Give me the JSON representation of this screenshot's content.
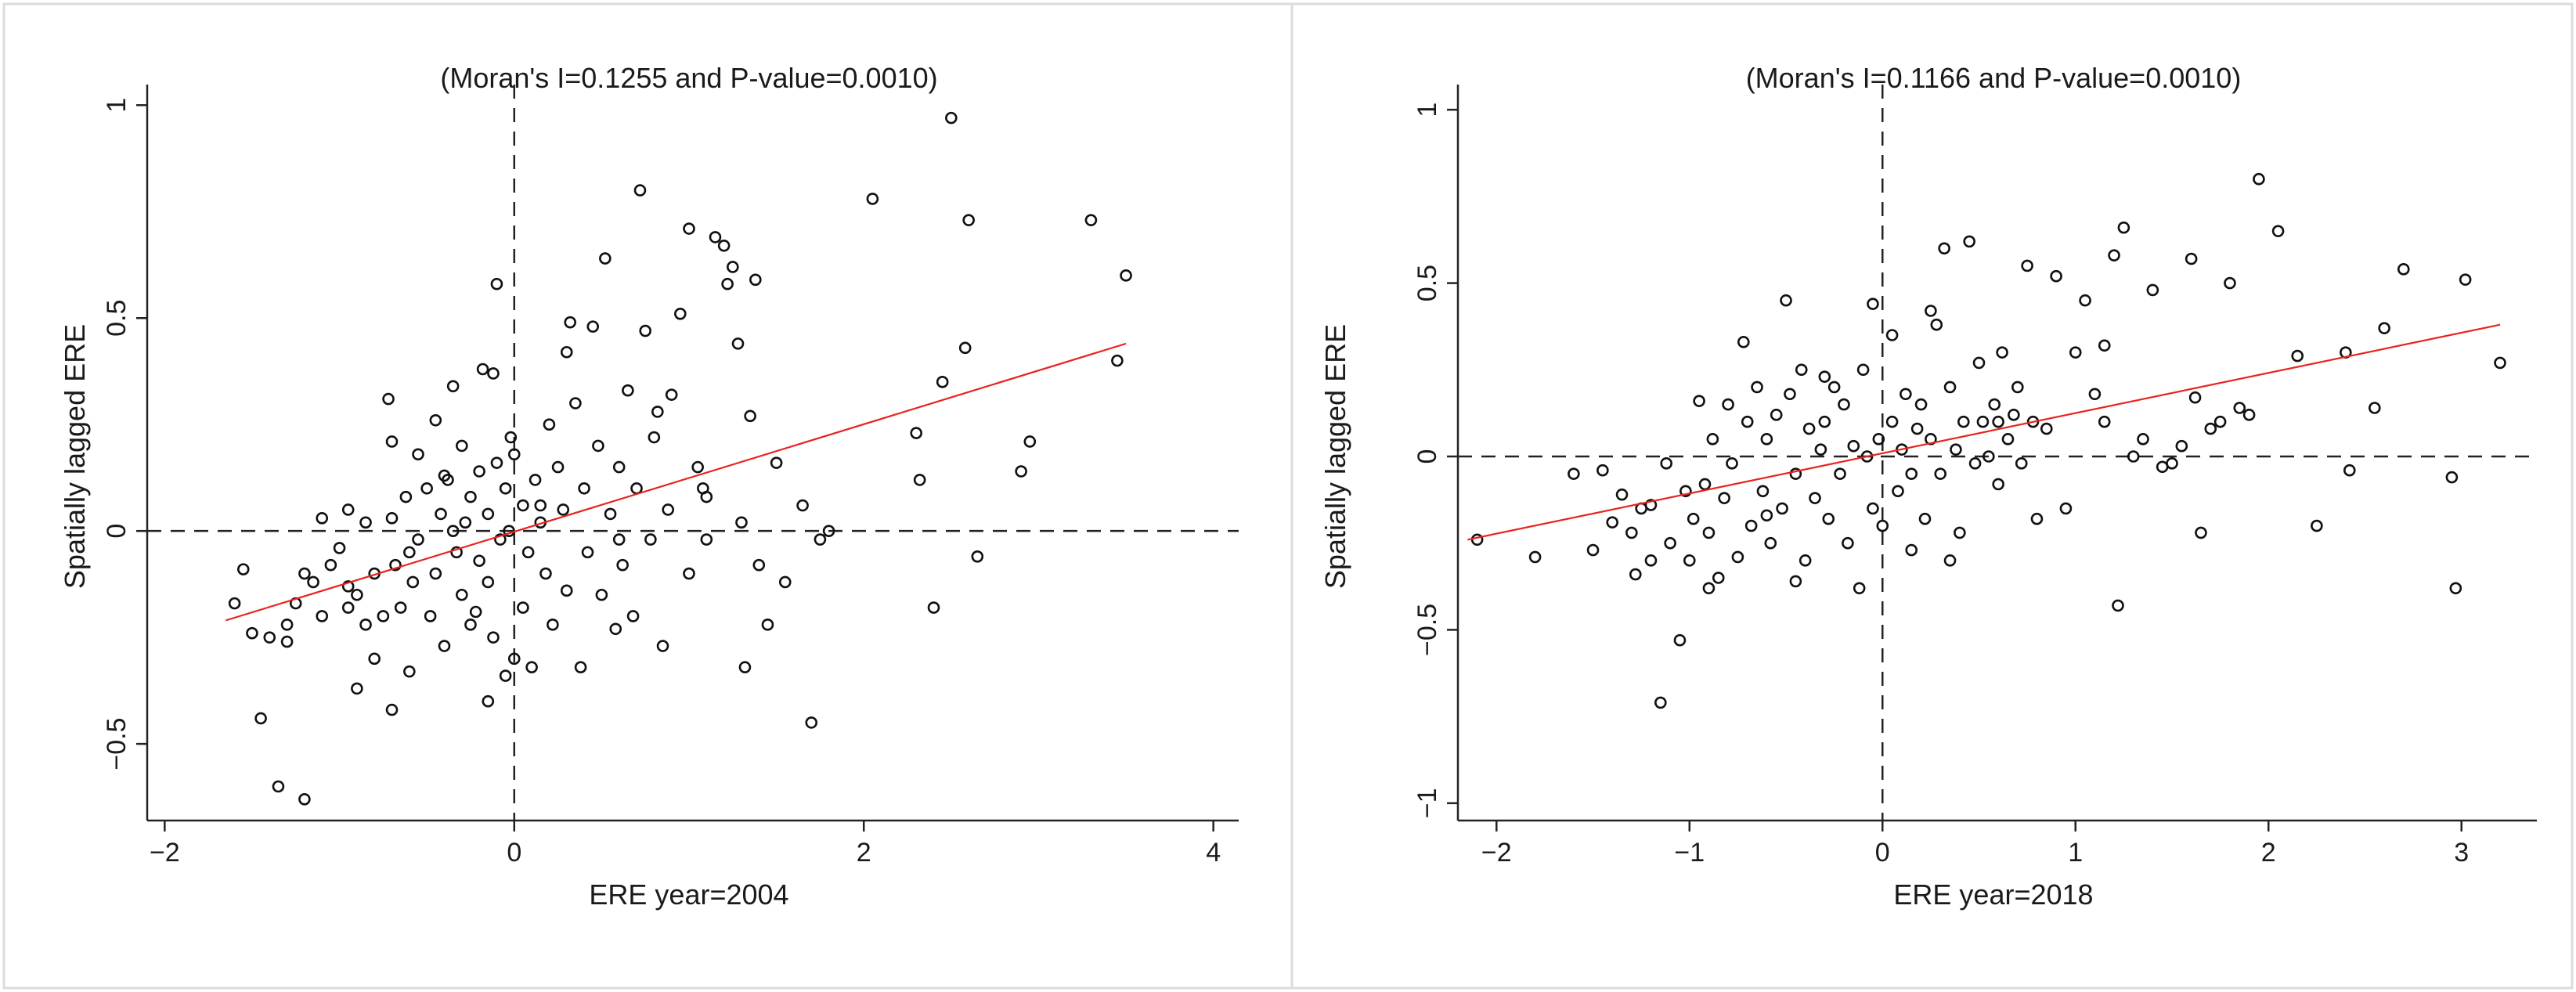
{
  "chart_data": [
    {
      "type": "scatter",
      "title": "(Moran's I=0.1255 and P-value=0.0010)",
      "xlabel": "ERE  year=2004",
      "ylabel": "Spatially lagged ERE",
      "xlim": [
        -2.1,
        4.1
      ],
      "ylim": [
        -0.68,
        1.03
      ],
      "xticks": [
        -2,
        0,
        2,
        4
      ],
      "xtick_labels": [
        "−2",
        "0",
        "2",
        "4"
      ],
      "yticks": [
        -0.5,
        0,
        0.5,
        1
      ],
      "ytick_labels": [
        "−0.5",
        "0",
        "0.5",
        "1"
      ],
      "grid": false,
      "reference_lines": {
        "x": 0,
        "y": 0
      },
      "fit_line": {
        "x": [
          -1.65,
          3.5
        ],
        "y": [
          -0.21,
          0.44
        ],
        "color": "#e8231f"
      },
      "points": [
        [
          -1.6,
          -0.17
        ],
        [
          -1.55,
          -0.09
        ],
        [
          -1.5,
          -0.24
        ],
        [
          -1.45,
          -0.44
        ],
        [
          -1.4,
          -0.25
        ],
        [
          -1.35,
          -0.6
        ],
        [
          -1.3,
          -0.22
        ],
        [
          -1.3,
          -0.26
        ],
        [
          -1.25,
          -0.17
        ],
        [
          -1.2,
          -0.63
        ],
        [
          -1.2,
          -0.1
        ],
        [
          -1.15,
          -0.12
        ],
        [
          -1.1,
          -0.2
        ],
        [
          -1.05,
          -0.08
        ],
        [
          -1.0,
          -0.04
        ],
        [
          -0.95,
          0.05
        ],
        [
          -0.95,
          -0.13
        ],
        [
          -0.9,
          -0.37
        ],
        [
          -0.9,
          -0.15
        ],
        [
          -0.85,
          -0.22
        ],
        [
          -0.85,
          0.02
        ],
        [
          -0.8,
          -0.1
        ],
        [
          -0.8,
          -0.3
        ],
        [
          -0.75,
          -0.2
        ],
        [
          -0.72,
          0.31
        ],
        [
          -0.7,
          0.21
        ],
        [
          -0.7,
          -0.42
        ],
        [
          -0.68,
          -0.08
        ],
        [
          -0.65,
          -0.18
        ],
        [
          -0.62,
          0.08
        ],
        [
          -0.6,
          -0.33
        ],
        [
          -0.58,
          -0.12
        ],
        [
          -0.55,
          0.18
        ],
        [
          -0.55,
          -0.02
        ],
        [
          -0.5,
          0.1
        ],
        [
          -0.48,
          -0.2
        ],
        [
          -0.45,
          0.26
        ],
        [
          -0.45,
          -0.1
        ],
        [
          -0.42,
          0.04
        ],
        [
          -0.4,
          -0.27
        ],
        [
          -0.38,
          0.12
        ],
        [
          -0.35,
          0.34
        ],
        [
          -0.33,
          -0.05
        ],
        [
          -0.3,
          0.2
        ],
        [
          -0.3,
          -0.15
        ],
        [
          -0.28,
          0.02
        ],
        [
          -0.25,
          0.08
        ],
        [
          -0.22,
          -0.19
        ],
        [
          -0.2,
          0.14
        ],
        [
          -0.2,
          -0.07
        ],
        [
          -0.18,
          0.38
        ],
        [
          -0.15,
          0.04
        ],
        [
          -0.15,
          -0.12
        ],
        [
          -0.12,
          -0.25
        ],
        [
          -0.1,
          0.16
        ],
        [
          -0.08,
          -0.02
        ],
        [
          -0.05,
          0.1
        ],
        [
          -0.05,
          -0.34
        ],
        [
          -0.03,
          0.0
        ],
        [
          -0.02,
          0.22
        ],
        [
          0.0,
          -0.3
        ],
        [
          -0.1,
          0.58
        ],
        [
          -0.12,
          0.37
        ],
        [
          -0.15,
          -0.4
        ],
        [
          0.05,
          0.06
        ],
        [
          0.08,
          -0.05
        ],
        [
          0.1,
          -0.32
        ],
        [
          0.12,
          0.12
        ],
        [
          0.15,
          0.02
        ],
        [
          0.18,
          -0.1
        ],
        [
          0.2,
          0.25
        ],
        [
          0.22,
          -0.22
        ],
        [
          0.25,
          0.15
        ],
        [
          0.28,
          0.05
        ],
        [
          0.3,
          -0.14
        ],
        [
          0.32,
          0.49
        ],
        [
          0.35,
          0.3
        ],
        [
          0.38,
          -0.32
        ],
        [
          0.4,
          0.1
        ],
        [
          0.42,
          -0.05
        ],
        [
          0.45,
          0.48
        ],
        [
          0.48,
          0.2
        ],
        [
          0.5,
          -0.15
        ],
        [
          0.52,
          0.64
        ],
        [
          0.55,
          0.04
        ],
        [
          0.58,
          -0.23
        ],
        [
          0.6,
          0.15
        ],
        [
          0.62,
          -0.08
        ],
        [
          0.65,
          0.33
        ],
        [
          0.68,
          -0.2
        ],
        [
          0.7,
          0.1
        ],
        [
          0.72,
          0.8
        ],
        [
          0.75,
          0.47
        ],
        [
          0.78,
          -0.02
        ],
        [
          0.8,
          0.22
        ],
        [
          0.82,
          0.28
        ],
        [
          0.85,
          -0.27
        ],
        [
          0.88,
          0.05
        ],
        [
          0.9,
          0.32
        ],
        [
          0.95,
          0.51
        ],
        [
          1.0,
          -0.1
        ],
        [
          1.0,
          0.71
        ],
        [
          1.05,
          0.15
        ],
        [
          1.08,
          0.1
        ],
        [
          1.1,
          -0.02
        ],
        [
          1.15,
          0.69
        ],
        [
          1.2,
          0.67
        ],
        [
          1.22,
          0.58
        ],
        [
          1.25,
          0.62
        ],
        [
          1.28,
          0.44
        ],
        [
          1.3,
          0.02
        ],
        [
          1.32,
          -0.32
        ],
        [
          1.35,
          0.27
        ],
        [
          1.38,
          0.59
        ],
        [
          1.4,
          -0.08
        ],
        [
          1.45,
          -0.22
        ],
        [
          1.5,
          0.16
        ],
        [
          1.55,
          -0.12
        ],
        [
          1.65,
          0.06
        ],
        [
          1.7,
          -0.45
        ],
        [
          1.75,
          -0.02
        ],
        [
          1.8,
          0.0
        ],
        [
          2.05,
          0.78
        ],
        [
          2.3,
          0.23
        ],
        [
          2.32,
          0.12
        ],
        [
          2.4,
          -0.18
        ],
        [
          2.45,
          0.35
        ],
        [
          2.5,
          0.97
        ],
        [
          2.58,
          0.43
        ],
        [
          2.6,
          0.73
        ],
        [
          2.65,
          -0.06
        ],
        [
          2.9,
          0.14
        ],
        [
          2.95,
          0.21
        ],
        [
          3.3,
          0.73
        ],
        [
          3.45,
          0.4
        ],
        [
          3.5,
          0.6
        ],
        [
          -0.25,
          -0.22
        ],
        [
          0.05,
          -0.18
        ],
        [
          0.15,
          0.06
        ],
        [
          -0.35,
          0.0
        ],
        [
          -0.6,
          -0.05
        ],
        [
          -0.95,
          -0.18
        ],
        [
          -1.1,
          0.03
        ],
        [
          0.3,
          0.42
        ],
        [
          0.6,
          -0.02
        ],
        [
          -0.4,
          0.13
        ],
        [
          0.0,
          0.18
        ],
        [
          -0.7,
          0.03
        ],
        [
          1.1,
          0.08
        ]
      ]
    },
    {
      "type": "scatter",
      "title": "(Moran's I=0.1166 and P-value=0.0010)",
      "xlabel": "ERE  year=2018",
      "ylabel": "Spatially lagged ERE",
      "xlim": [
        -2.2,
        3.35
      ],
      "ylim": [
        -1.05,
        1.05
      ],
      "xticks": [
        -2,
        -1,
        0,
        1,
        2,
        3
      ],
      "xtick_labels": [
        "−2",
        "−1",
        "0",
        "1",
        "2",
        "3"
      ],
      "yticks": [
        -1,
        -0.5,
        0,
        0.5,
        1
      ],
      "ytick_labels": [
        "−1",
        "−0.5",
        "0",
        "0.5",
        "1"
      ],
      "grid": false,
      "reference_lines": {
        "x": 0,
        "y": 0
      },
      "fit_line": {
        "x": [
          -2.15,
          3.2
        ],
        "y": [
          -0.24,
          0.38
        ],
        "color": "#e8231f"
      },
      "points": [
        [
          -2.1,
          -0.24
        ],
        [
          -1.8,
          -0.29
        ],
        [
          -1.6,
          -0.05
        ],
        [
          -1.5,
          -0.27
        ],
        [
          -1.4,
          -0.19
        ],
        [
          -1.35,
          -0.11
        ],
        [
          -1.3,
          -0.22
        ],
        [
          -1.28,
          -0.34
        ],
        [
          -1.25,
          -0.15
        ],
        [
          -1.2,
          -0.3
        ],
        [
          -1.15,
          -0.71
        ],
        [
          -1.12,
          -0.02
        ],
        [
          -1.1,
          -0.25
        ],
        [
          -1.05,
          -0.53
        ],
        [
          -1.02,
          -0.1
        ],
        [
          -1.0,
          -0.3
        ],
        [
          -0.98,
          -0.18
        ],
        [
          -0.95,
          0.16
        ],
        [
          -0.92,
          -0.08
        ],
        [
          -0.9,
          -0.22
        ],
        [
          -0.88,
          0.05
        ],
        [
          -0.85,
          -0.35
        ],
        [
          -0.82,
          -0.12
        ],
        [
          -0.8,
          0.15
        ],
        [
          -0.78,
          -0.02
        ],
        [
          -0.75,
          -0.29
        ],
        [
          -0.72,
          0.33
        ],
        [
          -0.7,
          0.1
        ],
        [
          -0.68,
          -0.2
        ],
        [
          -0.65,
          0.2
        ],
        [
          -0.62,
          -0.1
        ],
        [
          -0.6,
          0.05
        ],
        [
          -0.58,
          -0.25
        ],
        [
          -0.55,
          0.12
        ],
        [
          -0.52,
          -0.15
        ],
        [
          -0.5,
          0.45
        ],
        [
          -0.48,
          0.18
        ],
        [
          -0.45,
          -0.05
        ],
        [
          -0.42,
          0.25
        ],
        [
          -0.4,
          -0.3
        ],
        [
          -0.38,
          0.08
        ],
        [
          -0.35,
          -0.12
        ],
        [
          -0.32,
          0.02
        ],
        [
          -0.3,
          0.1
        ],
        [
          -0.28,
          -0.18
        ],
        [
          -0.25,
          0.2
        ],
        [
          -0.22,
          -0.05
        ],
        [
          -0.2,
          0.15
        ],
        [
          -0.18,
          -0.25
        ],
        [
          -0.15,
          0.03
        ],
        [
          -0.12,
          -0.38
        ],
        [
          -0.1,
          0.25
        ],
        [
          -0.08,
          0.0
        ],
        [
          -0.05,
          0.44
        ],
        [
          -0.05,
          -0.15
        ],
        [
          -0.02,
          0.05
        ],
        [
          0.0,
          -0.2
        ],
        [
          0.05,
          0.35
        ],
        [
          0.05,
          0.1
        ],
        [
          0.08,
          -0.1
        ],
        [
          0.1,
          0.02
        ],
        [
          0.12,
          0.18
        ],
        [
          0.15,
          -0.05
        ],
        [
          0.18,
          0.08
        ],
        [
          0.2,
          0.15
        ],
        [
          0.22,
          -0.18
        ],
        [
          0.25,
          0.05
        ],
        [
          0.28,
          0.38
        ],
        [
          0.3,
          -0.05
        ],
        [
          0.32,
          0.6
        ],
        [
          0.35,
          0.2
        ],
        [
          0.38,
          0.02
        ],
        [
          0.4,
          -0.22
        ],
        [
          0.42,
          0.1
        ],
        [
          0.45,
          0.62
        ],
        [
          0.48,
          -0.02
        ],
        [
          0.5,
          0.27
        ],
        [
          0.52,
          0.1
        ],
        [
          0.55,
          0.0
        ],
        [
          0.58,
          0.15
        ],
        [
          0.6,
          -0.08
        ],
        [
          0.62,
          0.3
        ],
        [
          0.65,
          0.05
        ],
        [
          0.68,
          0.12
        ],
        [
          0.7,
          0.2
        ],
        [
          0.72,
          -0.02
        ],
        [
          0.75,
          0.55
        ],
        [
          0.78,
          0.1
        ],
        [
          0.8,
          -0.18
        ],
        [
          0.85,
          0.08
        ],
        [
          0.9,
          0.52
        ],
        [
          0.95,
          -0.15
        ],
        [
          1.0,
          0.3
        ],
        [
          1.05,
          0.45
        ],
        [
          1.1,
          0.18
        ],
        [
          1.15,
          0.1
        ],
        [
          1.2,
          0.58
        ],
        [
          1.22,
          -0.43
        ],
        [
          1.25,
          0.66
        ],
        [
          1.3,
          0.0
        ],
        [
          1.35,
          0.05
        ],
        [
          1.4,
          0.48
        ],
        [
          1.45,
          -0.03
        ],
        [
          1.5,
          -0.02
        ],
        [
          1.55,
          0.03
        ],
        [
          1.6,
          0.57
        ],
        [
          1.62,
          0.17
        ],
        [
          1.65,
          -0.22
        ],
        [
          1.7,
          0.08
        ],
        [
          1.75,
          0.1
        ],
        [
          1.8,
          0.5
        ],
        [
          1.85,
          0.14
        ],
        [
          1.9,
          0.12
        ],
        [
          1.95,
          0.8
        ],
        [
          2.05,
          0.65
        ],
        [
          2.15,
          0.29
        ],
        [
          2.25,
          -0.2
        ],
        [
          2.4,
          0.3
        ],
        [
          2.42,
          -0.04
        ],
        [
          2.55,
          0.14
        ],
        [
          2.6,
          0.37
        ],
        [
          2.7,
          0.54
        ],
        [
          2.95,
          -0.06
        ],
        [
          2.97,
          -0.38
        ],
        [
          3.02,
          0.51
        ],
        [
          3.2,
          0.27
        ],
        [
          -1.45,
          -0.04
        ],
        [
          -0.6,
          -0.17
        ],
        [
          0.15,
          -0.27
        ],
        [
          -0.3,
          0.23
        ],
        [
          0.35,
          -0.3
        ],
        [
          1.15,
          0.32
        ],
        [
          -0.9,
          -0.38
        ],
        [
          -1.2,
          -0.14
        ],
        [
          0.6,
          0.1
        ],
        [
          -0.45,
          -0.36
        ],
        [
          0.25,
          0.42
        ]
      ]
    }
  ]
}
